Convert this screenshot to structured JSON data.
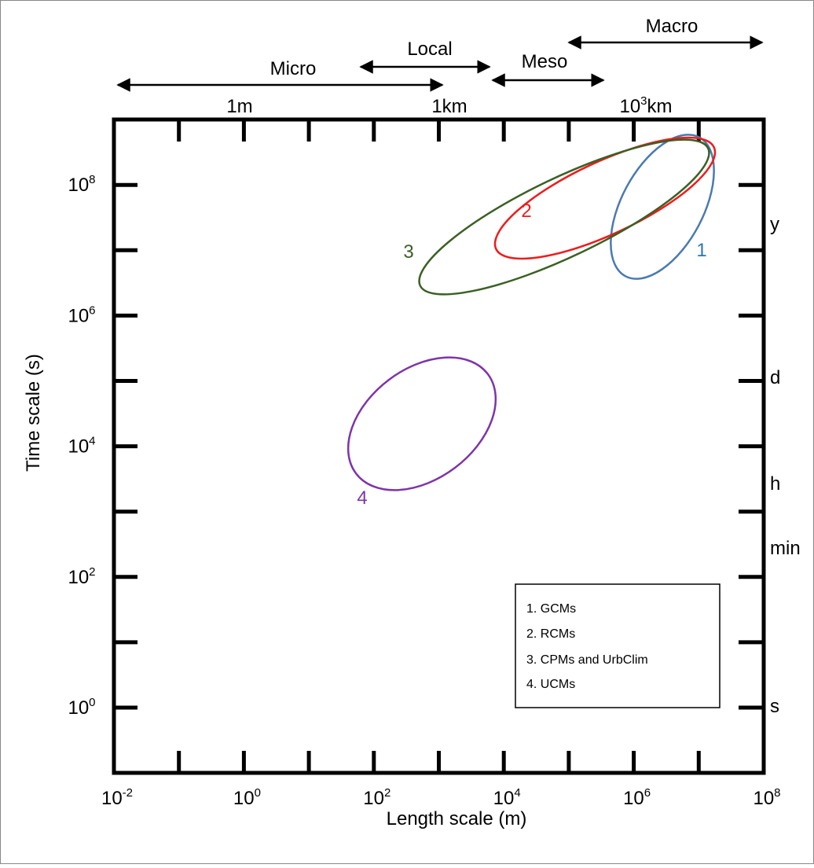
{
  "scale_bands": [
    "Micro",
    "Local",
    "Meso",
    "Macro"
  ],
  "top_labels": {
    "metre": "1m",
    "kilometre": "1km",
    "thousand_km": {
      "base": "10",
      "exp": "3",
      "unit": "km"
    }
  },
  "x_axis": {
    "title": "Length scale (m)",
    "ticks": [
      {
        "base": "10",
        "exp": "-2"
      },
      {
        "base": "10",
        "exp": "0"
      },
      {
        "base": "10",
        "exp": "2"
      },
      {
        "base": "10",
        "exp": "4"
      },
      {
        "base": "10",
        "exp": "6"
      },
      {
        "base": "10",
        "exp": "8"
      }
    ]
  },
  "y_axis": {
    "title": "Time scale (s)",
    "ticks": [
      {
        "base": "10",
        "exp": "8"
      },
      {
        "base": "10",
        "exp": "6"
      },
      {
        "base": "10",
        "exp": "4"
      },
      {
        "base": "10",
        "exp": "2"
      },
      {
        "base": "10",
        "exp": "0"
      }
    ]
  },
  "right_labels": [
    "y",
    "d",
    "h",
    "min",
    "s"
  ],
  "regions": [
    "1",
    "2",
    "3",
    "4"
  ],
  "legend": [
    "1. GCMs",
    "2. RCMs",
    "3. CPMs and UrbClim",
    "4. UCMs"
  ]
}
